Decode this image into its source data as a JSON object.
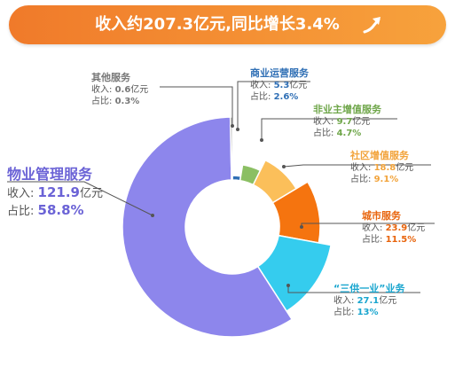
{
  "header": {
    "title": "收入约207.3亿元,同比增长3.4%",
    "arrow_icon": "trend-up-arrow-icon"
  },
  "chart_data": {
    "type": "pie",
    "donut": true,
    "title": "收入约207.3亿元,同比增长3.4%",
    "row_labels": {
      "revenue": "收入:",
      "share": "占比:",
      "unit": "亿元"
    },
    "slices": [
      {
        "name": "商业运营服务",
        "revenue": "5.3",
        "share": "2.6%",
        "value": 2.6,
        "color": "#2f6fb5"
      },
      {
        "name": "非业主增值服务",
        "revenue": "9.7",
        "share": "4.7%",
        "value": 4.7,
        "color": "#8bbf63"
      },
      {
        "name": "社区增值服务",
        "revenue": "18.8",
        "share": "9.1%",
        "value": 9.1,
        "color": "#fbbf5a"
      },
      {
        "name": "城市服务",
        "revenue": "23.9",
        "share": "11.5%",
        "value": 11.5,
        "color": "#f5740f"
      },
      {
        "name": "“三供一业”业务",
        "revenue": "27.1",
        "share": "13%",
        "value": 13.0,
        "color": "#35ccee"
      },
      {
        "name": "物业管理服务",
        "revenue": "121.9",
        "share": "58.8%",
        "value": 58.8,
        "color": "#8d86ec"
      },
      {
        "name": "其他服务",
        "revenue": "0.6",
        "share": "0.3%",
        "value": 0.3,
        "color": "#888888"
      }
    ]
  }
}
